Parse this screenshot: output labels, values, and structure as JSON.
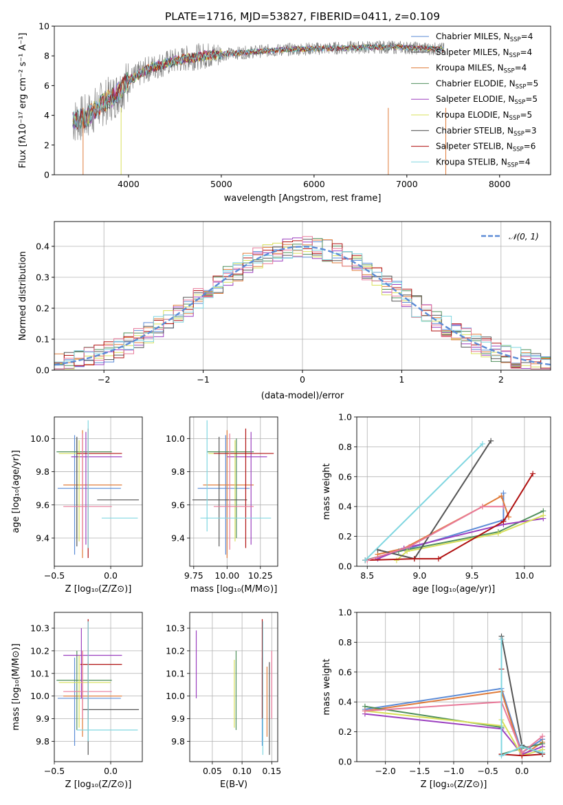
{
  "figure_title": "PLATE=1716, MJD=53827, FIBERID=0411, z=0.109",
  "chart_data": [
    {
      "type": "line",
      "panel": "spectrum",
      "xlabel": "wavelength [Angstrom, rest frame]",
      "ylabel": "Flux [fλ10⁻¹⁷ erg cm⁻² s⁻¹ A⁻¹]",
      "xlim": [
        3200,
        8550
      ],
      "ylim": [
        0,
        10
      ],
      "xticks": [
        "4000",
        "5000",
        "6000",
        "7000",
        "8000"
      ],
      "yticks": [
        "0",
        "2",
        "4",
        "6",
        "8",
        "10"
      ],
      "grid": false,
      "legend_position": "right",
      "observed_color": "#808080",
      "continuum": {
        "x": [
          3400,
          3550,
          3700,
          3850,
          4000,
          4200,
          4400,
          4600,
          4800,
          5000,
          5200,
          5500,
          5800,
          6100,
          6400,
          6700,
          7000,
          7200,
          7400
        ],
        "y": [
          3.6,
          3.9,
          4.7,
          5.3,
          6.3,
          7.1,
          7.5,
          7.8,
          8.0,
          8.1,
          8.2,
          8.35,
          8.45,
          8.5,
          8.55,
          8.6,
          8.55,
          8.5,
          8.45
        ]
      },
      "series": [
        {
          "name": "Chabrier MILES, N",
          "nssp": "4",
          "color": "#5b8bd6"
        },
        {
          "name": "Salpeter MILES, N",
          "nssp": "4",
          "color": "#333333"
        },
        {
          "name": "Kroupa MILES, N",
          "nssp": "4",
          "color": "#e07b39"
        },
        {
          "name": "Chabrier ELODIE, N",
          "nssp": "5",
          "color": "#4f8f5b"
        },
        {
          "name": "Salpeter ELODIE, N",
          "nssp": "5",
          "color": "#9b3fbf"
        },
        {
          "name": "Kroupa ELODIE, N",
          "nssp": "5",
          "color": "#d8e05a"
        },
        {
          "name": "Chabrier STELIB, N",
          "nssp": "3",
          "color": "#444444"
        },
        {
          "name": "Salpeter STELIB, N",
          "nssp": "6",
          "color": "#b01010"
        },
        {
          "name": "Kroupa STELIB, N",
          "nssp": "4",
          "color": "#7fd6e0"
        }
      ],
      "legend_subscript": "SSP"
    },
    {
      "type": "line",
      "panel": "residuals",
      "xlabel": "(data-model)/error",
      "ylabel": "Normed distribution",
      "xlim": [
        -2.5,
        2.5
      ],
      "ylim": [
        0,
        0.48
      ],
      "xticks": [
        "−2",
        "−1",
        "0",
        "1",
        "2"
      ],
      "yticks": [
        "0.0",
        "0.1",
        "0.2",
        "0.3",
        "0.4"
      ],
      "grid": true,
      "legend_position": "top-right",
      "gaussian_label": "𝒩(0, 1)",
      "gaussian_color": "#5b8bd6",
      "bin_width": 0.1,
      "series": [
        {
          "color": "#5b8bd6",
          "offset": 0.2
        },
        {
          "color": "#e07b39",
          "offset": 0.35
        },
        {
          "color": "#4f8f5b",
          "offset": 0.7
        },
        {
          "color": "#9b3fbf",
          "offset": 1.1
        },
        {
          "color": "#d8e05a",
          "offset": 1.6
        },
        {
          "color": "#555555",
          "offset": 2.2
        },
        {
          "color": "#b01010",
          "offset": 2.8
        },
        {
          "color": "#e87a9a",
          "offset": 3.3
        },
        {
          "color": "#7fd6e0",
          "offset": 3.9
        }
      ]
    },
    {
      "type": "scatter",
      "panel": "age-vs-Z",
      "xlabel": "Z [log₁₀(Z/Z⊙)]",
      "ylabel": "age  [log₁₀(age/yr)]",
      "xlim": [
        -0.5,
        0.28
      ],
      "ylim": [
        9.23,
        10.13
      ],
      "xticks": [
        {
          "v": -0.5,
          "t": "−0.5"
        },
        {
          "v": 0.0,
          "t": "0.0"
        }
      ],
      "yticks": [
        {
          "v": 9.4,
          "t": "9.4"
        },
        {
          "v": 9.6,
          "t": "9.6"
        },
        {
          "v": 9.8,
          "t": "9.8"
        },
        {
          "v": 10.0,
          "t": "10.0"
        }
      ],
      "grid": true,
      "points": [
        {
          "x": -0.32,
          "y": 9.7,
          "x0": -0.47,
          "x1": 0.09,
          "y0": 9.3,
          "y1": 10.02,
          "color": "#5b8bd6"
        },
        {
          "x": -0.25,
          "y": 9.72,
          "x0": -0.42,
          "x1": 0.1,
          "y0": 9.28,
          "y1": 10.05,
          "color": "#e07b39"
        },
        {
          "x": -0.3,
          "y": 9.92,
          "x0": -0.48,
          "x1": 0.01,
          "y0": 9.4,
          "y1": 10.0,
          "color": "#4f8f5b"
        },
        {
          "x": -0.22,
          "y": 9.89,
          "x0": -0.35,
          "x1": 0.1,
          "y0": 9.36,
          "y1": 10.04,
          "color": "#9b3fbf"
        },
        {
          "x": -0.28,
          "y": 9.91,
          "x0": -0.46,
          "x1": 0.0,
          "y0": 9.38,
          "y1": 9.99,
          "color": "#d8e05a"
        },
        {
          "x": -0.3,
          "y": 9.63,
          "x0": -0.12,
          "x1": 0.25,
          "y0": 9.35,
          "y1": 10.01,
          "color": "#555555"
        },
        {
          "x": -0.2,
          "y": 9.91,
          "x0": -0.3,
          "x1": 0.1,
          "y0": 9.28,
          "y1": 10.06,
          "color": "#b01010"
        },
        {
          "x": -0.25,
          "y": 9.59,
          "x0": -0.42,
          "x1": 0.01,
          "y0": 9.33,
          "y1": 10.03,
          "color": "#e87a9a"
        },
        {
          "x": -0.2,
          "y": 9.52,
          "x0": -0.08,
          "x1": 0.24,
          "y0": 9.34,
          "y1": 10.11,
          "color": "#7fd6e0"
        }
      ]
    },
    {
      "type": "scatter",
      "panel": "age-vs-mass",
      "xlabel": "mass [log₁₀(M/M⊙)]",
      "ylabel": "",
      "xlim": [
        9.72,
        10.38
      ],
      "ylim": [
        9.23,
        10.13
      ],
      "xticks": [
        {
          "v": 9.75,
          "t": "9.75"
        },
        {
          "v": 10.0,
          "t": "10.00"
        },
        {
          "v": 10.25,
          "t": "10.25"
        }
      ],
      "yticks": [
        {
          "v": 9.4,
          "t": "9.4"
        },
        {
          "v": 9.6,
          "t": "9.6"
        },
        {
          "v": 9.8,
          "t": "9.8"
        },
        {
          "v": 10.0,
          "t": "10.0"
        }
      ],
      "grid": true,
      "points": [
        {
          "x": 9.99,
          "y": 9.7,
          "x0": 9.78,
          "x1": 10.17,
          "y0": 9.3,
          "y1": 10.02,
          "color": "#5b8bd6"
        },
        {
          "x": 10.0,
          "y": 9.72,
          "x0": 9.82,
          "x1": 10.2,
          "y0": 9.28,
          "y1": 10.05,
          "color": "#e07b39"
        },
        {
          "x": 10.07,
          "y": 9.92,
          "x0": 9.85,
          "x1": 10.2,
          "y0": 9.4,
          "y1": 10.0,
          "color": "#4f8f5b"
        },
        {
          "x": 10.18,
          "y": 9.89,
          "x0": 10.0,
          "x1": 10.3,
          "y0": 9.36,
          "y1": 10.04,
          "color": "#9b3fbf"
        },
        {
          "x": 10.06,
          "y": 9.91,
          "x0": 9.86,
          "x1": 10.18,
          "y0": 9.38,
          "y1": 9.99,
          "color": "#d8e05a"
        },
        {
          "x": 9.94,
          "y": 9.63,
          "x0": 9.74,
          "x1": 10.15,
          "y0": 9.35,
          "y1": 10.01,
          "color": "#555555"
        },
        {
          "x": 10.14,
          "y": 9.91,
          "x0": 9.9,
          "x1": 10.35,
          "y0": 9.34,
          "y1": 10.06,
          "color": "#b01010"
        },
        {
          "x": 10.02,
          "y": 9.59,
          "x0": 9.9,
          "x1": 10.2,
          "y0": 9.33,
          "y1": 10.03,
          "color": "#e87a9a"
        },
        {
          "x": 9.85,
          "y": 9.52,
          "x0": 9.8,
          "x1": 10.33,
          "y0": 9.44,
          "y1": 10.11,
          "color": "#7fd6e0"
        }
      ]
    },
    {
      "type": "line",
      "panel": "mass-weight-vs-age",
      "xlabel": "age  [log₁₀(age/yr)]",
      "ylabel": "mass weight",
      "xlim": [
        8.4,
        10.25
      ],
      "ylim": [
        0,
        1
      ],
      "xticks": [
        {
          "v": 8.5,
          "t": "8.5"
        },
        {
          "v": 9.0,
          "t": "9.0"
        },
        {
          "v": 9.5,
          "t": "9.5"
        },
        {
          "v": 10.0,
          "t": "10.0"
        }
      ],
      "yticks": [
        {
          "v": 0,
          "t": "0.0"
        },
        {
          "v": 0.2,
          "t": "0.2"
        },
        {
          "v": 0.4,
          "t": "0.4"
        },
        {
          "v": 0.6,
          "t": "0.6"
        },
        {
          "v": 0.8,
          "t": "0.8"
        },
        {
          "v": 1.0,
          "t": "1.0"
        }
      ],
      "grid": true,
      "series": [
        {
          "color": "#5b8bd6",
          "x": [
            8.48,
            8.9,
            9.8,
            9.8
          ],
          "y": [
            0.04,
            0.12,
            0.31,
            0.49
          ]
        },
        {
          "color": "#e07b39",
          "x": [
            8.6,
            8.85,
            9.6,
            9.78,
            9.85
          ],
          "y": [
            0.08,
            0.12,
            0.4,
            0.47,
            0.33
          ]
        },
        {
          "color": "#4f8f5b",
          "x": [
            8.48,
            8.8,
            9.75,
            10.18
          ],
          "y": [
            0.04,
            0.1,
            0.23,
            0.37
          ]
        },
        {
          "color": "#9b3fbf",
          "x": [
            8.6,
            8.85,
            9.8,
            10.18
          ],
          "y": [
            0.05,
            0.12,
            0.28,
            0.32
          ]
        },
        {
          "color": "#d8e05a",
          "x": [
            8.78,
            8.88,
            9.75,
            10.18
          ],
          "y": [
            0.04,
            0.1,
            0.22,
            0.34
          ]
        },
        {
          "color": "#555555",
          "x": [
            8.6,
            8.95,
            9.68
          ],
          "y": [
            0.11,
            0.05,
            0.84
          ]
        },
        {
          "color": "#b01010",
          "x": [
            8.48,
            8.95,
            9.18,
            9.8,
            10.08
          ],
          "y": [
            0.04,
            0.05,
            0.05,
            0.3,
            0.62
          ]
        },
        {
          "color": "#e87a9a",
          "x": [
            8.5,
            8.9,
            9.6,
            9.8
          ],
          "y": [
            0.04,
            0.13,
            0.4,
            0.4
          ]
        },
        {
          "color": "#7fd6e0",
          "x": [
            8.48,
            9.6
          ],
          "y": [
            0.04,
            0.82
          ]
        }
      ]
    },
    {
      "type": "scatter",
      "panel": "mass-vs-Z",
      "xlabel": "Z [log₁₀(Z/Z⊙)]",
      "ylabel": "mass [log₁₀(M/M⊙)]",
      "xlim": [
        -0.5,
        0.28
      ],
      "ylim": [
        9.71,
        10.37
      ],
      "xticks": [
        {
          "v": -0.5,
          "t": "−0.5"
        },
        {
          "v": 0.0,
          "t": "0.0"
        }
      ],
      "yticks": [
        {
          "v": 9.8,
          "t": "9.8"
        },
        {
          "v": 9.9,
          "t": "9.9"
        },
        {
          "v": 10.0,
          "t": "10.0"
        },
        {
          "v": 10.1,
          "t": "10.1"
        },
        {
          "v": 10.2,
          "t": "10.2"
        },
        {
          "v": 10.3,
          "t": "10.3"
        }
      ],
      "grid": true,
      "points": [
        {
          "x": -0.32,
          "y": 9.99,
          "x0": -0.47,
          "x1": 0.09,
          "y0": 9.78,
          "y1": 10.17,
          "color": "#5b8bd6"
        },
        {
          "x": -0.25,
          "y": 10.0,
          "x0": -0.42,
          "x1": 0.1,
          "y0": 9.82,
          "y1": 10.2,
          "color": "#e07b39"
        },
        {
          "x": -0.3,
          "y": 10.07,
          "x0": -0.48,
          "x1": 0.01,
          "y0": 9.85,
          "y1": 10.2,
          "color": "#4f8f5b"
        },
        {
          "x": -0.26,
          "y": 10.18,
          "x0": -0.42,
          "x1": 0.1,
          "y0": 9.99,
          "y1": 10.3,
          "color": "#9b3fbf"
        },
        {
          "x": -0.28,
          "y": 10.06,
          "x0": -0.46,
          "x1": 0.0,
          "y0": 9.86,
          "y1": 10.18,
          "color": "#d8e05a"
        },
        {
          "x": -0.2,
          "y": 9.94,
          "x0": -0.25,
          "x1": 0.25,
          "y0": 9.74,
          "y1": 10.15,
          "color": "#555555"
        },
        {
          "x": -0.2,
          "y": 10.14,
          "x0": -0.27,
          "x1": 0.1,
          "y0": 9.9,
          "y1": 10.34,
          "color": "#b01010"
        },
        {
          "x": -0.25,
          "y": 10.02,
          "x0": -0.42,
          "x1": 0.01,
          "y0": 9.9,
          "y1": 10.2,
          "color": "#e87a9a"
        },
        {
          "x": -0.2,
          "y": 9.85,
          "x0": -0.3,
          "x1": 0.24,
          "y0": 9.8,
          "y1": 10.33,
          "color": "#7fd6e0"
        }
      ]
    },
    {
      "type": "scatter",
      "panel": "mass-vs-EBV",
      "xlabel": "E(B-V)",
      "ylabel": "",
      "xlim": [
        0.012,
        0.16
      ],
      "ylim": [
        9.71,
        10.37
      ],
      "xticks": [
        {
          "v": 0.05,
          "t": "0.05"
        },
        {
          "v": 0.1,
          "t": "0.10"
        },
        {
          "v": 0.15,
          "t": "0.15"
        }
      ],
      "yticks": [
        {
          "v": 9.8,
          "t": "9.8"
        },
        {
          "v": 9.9,
          "t": "9.9"
        },
        {
          "v": 10.0,
          "t": "10.0"
        },
        {
          "v": 10.1,
          "t": "10.1"
        },
        {
          "v": 10.2,
          "t": "10.2"
        },
        {
          "v": 10.3,
          "t": "10.3"
        }
      ],
      "grid": true,
      "points": [
        {
          "x": 0.134,
          "y": 9.99,
          "y0": 9.78,
          "y1": 10.17,
          "color": "#5b8bd6"
        },
        {
          "x": 0.142,
          "y": 10.0,
          "y0": 9.82,
          "y1": 10.13,
          "color": "#e07b39"
        },
        {
          "x": 0.09,
          "y": 10.07,
          "y0": 9.85,
          "y1": 10.2,
          "color": "#4f8f5b"
        },
        {
          "x": 0.023,
          "y": 10.18,
          "y0": 9.99,
          "y1": 10.29,
          "color": "#9b3fbf"
        },
        {
          "x": 0.087,
          "y": 10.06,
          "y0": 9.86,
          "y1": 10.16,
          "color": "#d8e05a"
        },
        {
          "x": 0.146,
          "y": 9.94,
          "y0": 9.74,
          "y1": 10.15,
          "color": "#555555"
        },
        {
          "x": 0.134,
          "y": 10.14,
          "y0": 9.9,
          "y1": 10.34,
          "color": "#b01010"
        },
        {
          "x": 0.15,
          "y": 10.02,
          "y0": 9.9,
          "y1": 10.2,
          "color": "#e87a9a"
        },
        {
          "x": 0.135,
          "y": 9.85,
          "y0": 9.74,
          "y1": 10.33,
          "color": "#7fd6e0"
        }
      ]
    },
    {
      "type": "line",
      "panel": "mass-weight-vs-Z",
      "xlabel": "Z [log₁₀(Z/Z⊙)]",
      "ylabel": "mass weight",
      "xlim": [
        -2.42,
        0.42
      ],
      "ylim": [
        0,
        1
      ],
      "xticks": [
        {
          "v": -2.0,
          "t": "−2.0"
        },
        {
          "v": -1.5,
          "t": "−1.5"
        },
        {
          "v": -1.0,
          "t": "−1.0"
        },
        {
          "v": -0.5,
          "t": "−0.5"
        },
        {
          "v": 0.0,
          "t": "0.0"
        }
      ],
      "yticks": [
        {
          "v": 0,
          "t": "0.0"
        },
        {
          "v": 0.2,
          "t": "0.2"
        },
        {
          "v": 0.4,
          "t": "0.4"
        },
        {
          "v": 0.6,
          "t": "0.6"
        },
        {
          "v": 0.8,
          "t": "0.8"
        },
        {
          "v": 1.0,
          "t": "1.0"
        }
      ],
      "grid": true,
      "series": [
        {
          "color": "#5b8bd6",
          "x": [
            -2.3,
            -0.3,
            0.0,
            0.3
          ],
          "y": [
            0.35,
            0.49,
            0.06,
            0.15
          ]
        },
        {
          "color": "#e07b39",
          "x": [
            -2.3,
            -0.3,
            0.0,
            0.3
          ],
          "y": [
            0.34,
            0.47,
            0.04,
            0.13
          ]
        },
        {
          "color": "#4f8f5b",
          "x": [
            -2.3,
            -0.3,
            -0.3,
            0.0,
            0.3
          ],
          "y": [
            0.37,
            0.23,
            0.05,
            0.09,
            0.12
          ]
        },
        {
          "color": "#9b3fbf",
          "x": [
            -2.3,
            -0.3,
            0.0,
            0.3
          ],
          "y": [
            0.32,
            0.22,
            0.05,
            0.1
          ]
        },
        {
          "color": "#d8e05a",
          "x": [
            -2.3,
            -0.3,
            -0.3,
            0.0,
            0.3
          ],
          "y": [
            0.34,
            0.24,
            0.28,
            0.04,
            0.08
          ]
        },
        {
          "color": "#555555",
          "x": [
            -0.3,
            -0.3,
            0.0,
            0.3
          ],
          "y": [
            0.05,
            0.84,
            0.11,
            0.05
          ]
        },
        {
          "color": "#b01010",
          "x": [
            -0.3,
            -0.3,
            0.0,
            0.3
          ],
          "y": [
            0.62,
            0.05,
            0.04,
            0.05
          ]
        },
        {
          "color": "#e87a9a",
          "x": [
            -2.3,
            -0.3,
            0.0,
            0.3
          ],
          "y": [
            0.34,
            0.4,
            0.06,
            0.17
          ]
        },
        {
          "color": "#7fd6e0",
          "x": [
            -0.3,
            -0.3,
            0.0,
            0.3
          ],
          "y": [
            0.82,
            0.04,
            0.1,
            0.06
          ]
        }
      ]
    }
  ]
}
